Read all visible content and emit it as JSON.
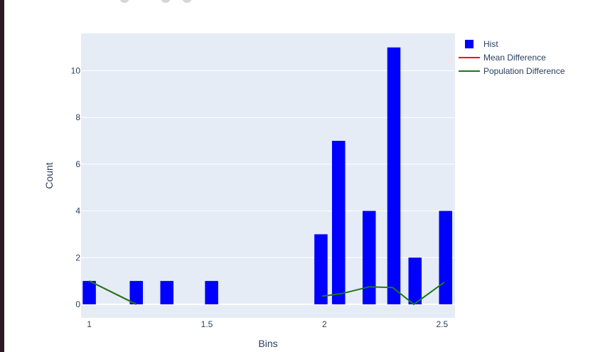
{
  "chart_data": {
    "type": "bar",
    "title": "",
    "xlabel": "Bins",
    "ylabel": "Count",
    "xlim": [
      0.965,
      2.555
    ],
    "ylim": [
      -0.58,
      11.6
    ],
    "x_ticks": [
      "1",
      "1.5",
      "2",
      "2.5"
    ],
    "x_tick_values": [
      1,
      1.5,
      2,
      2.5
    ],
    "y_ticks": [
      "0",
      "2",
      "4",
      "6",
      "8",
      "10"
    ],
    "y_tick_values": [
      0,
      2,
      4,
      6,
      8,
      10
    ],
    "grid": true,
    "legend_position": "right",
    "bar_width": 0.056,
    "series": [
      {
        "name": "Hist",
        "type": "bar",
        "color": "#0000ff",
        "x": [
          1.0,
          1.2,
          1.33,
          1.52,
          1.985,
          2.06,
          2.19,
          2.295,
          2.385,
          2.515
        ],
        "values": [
          1,
          1,
          1,
          1,
          3,
          7,
          4,
          11,
          2,
          4
        ]
      },
      {
        "name": "Mean Difference",
        "type": "line",
        "color": "#ff0000",
        "x": [
          1.0,
          1.2
        ],
        "values": [
          1.0,
          0.0
        ]
      },
      {
        "name": "Population Difference",
        "type": "line",
        "color": "#1a7a1a",
        "segments": [
          {
            "x": [
              1.0,
              1.2
            ],
            "values": [
              1.0,
              0.0
            ]
          },
          {
            "x": [
              1.99,
              2.07,
              2.19,
              2.29,
              2.38,
              2.51
            ],
            "values": [
              0.35,
              0.45,
              0.75,
              0.72,
              0.0,
              0.95
            ]
          }
        ]
      }
    ]
  }
}
